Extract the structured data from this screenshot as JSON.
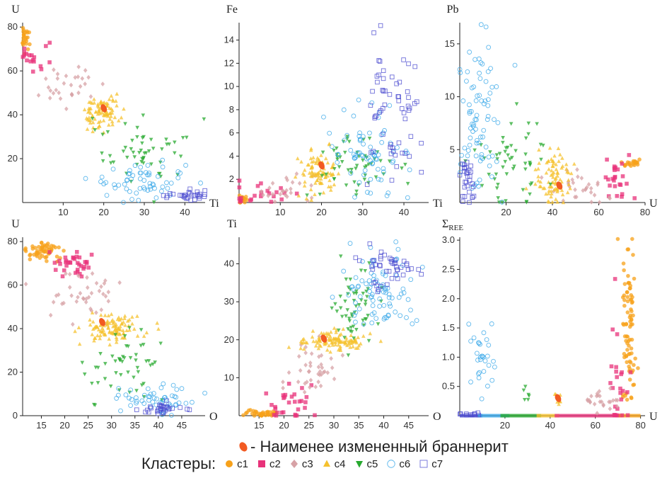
{
  "highlight": {
    "symbol_color": "#f25a22",
    "text": "- Наименее измененный браннерит"
  },
  "legend": {
    "title": "Кластеры:",
    "items": [
      {
        "label": "c1",
        "marker": "circle-filled",
        "color": "#f7a11a"
      },
      {
        "label": "c2",
        "marker": "square-filled",
        "color": "#e8327a"
      },
      {
        "label": "c3",
        "marker": "diamond-filled",
        "color": "#d7a2a6"
      },
      {
        "label": "c4",
        "marker": "triangle-up-filled",
        "color": "#f5c12e"
      },
      {
        "label": "c5",
        "marker": "triangle-down-filled",
        "color": "#27a92f"
      },
      {
        "label": "c6",
        "marker": "circle-open",
        "color": "#38a8e8"
      },
      {
        "label": "c7",
        "marker": "square-open",
        "color": "#4a4ad0"
      }
    ]
  },
  "chart_data": [
    {
      "type": "scatter",
      "ylabel": "U",
      "xlabel": "Ti",
      "xlim": [
        0,
        45
      ],
      "ylim": [
        0,
        82
      ],
      "xticks": [
        10,
        20,
        30,
        40
      ],
      "yticks": [
        20,
        40,
        60,
        80
      ],
      "clusters": [
        {
          "name": "c1",
          "cx": 0.5,
          "cy": 74,
          "sx": 1.0,
          "sy": 4,
          "n": 25
        },
        {
          "name": "c2",
          "cx": 3,
          "cy": 67,
          "sx": 2.5,
          "sy": 4,
          "n": 18
        },
        {
          "name": "c3",
          "cx": 11,
          "cy": 53,
          "sx": 3.5,
          "sy": 5,
          "n": 30
        },
        {
          "name": "c4",
          "cx": 19.5,
          "cy": 41,
          "sx": 2.5,
          "sy": 4,
          "n": 90
        },
        {
          "name": "c5",
          "cx": 30,
          "cy": 24,
          "sx": 5,
          "sy": 7,
          "n": 55
        },
        {
          "name": "c6",
          "cx": 30,
          "cy": 10,
          "sx": 5,
          "sy": 4,
          "n": 60
        },
        {
          "name": "c7",
          "cx": 40,
          "cy": 3,
          "sx": 2.5,
          "sy": 1.2,
          "n": 30
        }
      ],
      "least_altered": {
        "x": 20,
        "y": 43
      }
    },
    {
      "type": "scatter",
      "ylabel": "Fe",
      "xlabel": "Ti",
      "xlim": [
        0,
        46
      ],
      "ylim": [
        0,
        15.5
      ],
      "xticks": [
        10,
        20,
        30,
        40
      ],
      "yticks": [
        2,
        4,
        6,
        8,
        10,
        12,
        14
      ],
      "clusters": [
        {
          "name": "c1",
          "cx": 0.5,
          "cy": 0.3,
          "sx": 0.6,
          "sy": 0.3,
          "n": 15
        },
        {
          "name": "c2",
          "cx": 5,
          "cy": 0.8,
          "sx": 5,
          "sy": 0.6,
          "n": 22
        },
        {
          "name": "c3",
          "cx": 12,
          "cy": 1.3,
          "sx": 4,
          "sy": 0.8,
          "n": 25
        },
        {
          "name": "c4",
          "cx": 19,
          "cy": 2.6,
          "sx": 2.5,
          "sy": 0.8,
          "n": 90
        },
        {
          "name": "c5",
          "cx": 27,
          "cy": 3.2,
          "sx": 5,
          "sy": 1.4,
          "n": 55
        },
        {
          "name": "c6",
          "cx": 31,
          "cy": 4.0,
          "sx": 5,
          "sy": 1.8,
          "n": 75
        },
        {
          "name": "c7",
          "cx": 38,
          "cy": 7.5,
          "sx": 4,
          "sy": 2.8,
          "n": 60
        }
      ],
      "least_altered": {
        "x": 20,
        "y": 3.2
      }
    },
    {
      "type": "scatter",
      "ylabel": "Pb",
      "xlabel": "U",
      "xlim": [
        0,
        80
      ],
      "ylim": [
        0,
        17
      ],
      "xticks": [
        20,
        40,
        60,
        80
      ],
      "yticks": [
        5,
        10,
        15
      ],
      "clusters": [
        {
          "name": "c1",
          "cx": 74,
          "cy": 3.7,
          "sx": 2,
          "sy": 0.2,
          "n": 20
        },
        {
          "name": "c2",
          "cx": 68,
          "cy": 2.4,
          "sx": 4,
          "sy": 1.0,
          "n": 25
        },
        {
          "name": "c3",
          "cx": 52,
          "cy": 1.5,
          "sx": 6,
          "sy": 0.7,
          "n": 30
        },
        {
          "name": "c4",
          "cx": 40,
          "cy": 2.3,
          "sx": 4,
          "sy": 1.2,
          "n": 85
        },
        {
          "name": "c5",
          "cx": 22,
          "cy": 4.0,
          "sx": 8,
          "sy": 2.5,
          "n": 55
        },
        {
          "name": "c6",
          "cx": 8,
          "cy": 8.0,
          "sx": 4.5,
          "sy": 4,
          "n": 80
        },
        {
          "name": "c7",
          "cx": 3,
          "cy": 2.2,
          "sx": 1.5,
          "sy": 1.0,
          "n": 30
        }
      ],
      "least_altered": {
        "x": 43,
        "y": 1.6
      }
    },
    {
      "type": "scatter",
      "ylabel": "U",
      "xlabel": "O",
      "xlim": [
        11,
        50
      ],
      "ylim": [
        0,
        82
      ],
      "xticks": [
        15,
        20,
        25,
        30,
        35,
        40,
        45
      ],
      "yticks": [
        0,
        20,
        40,
        60,
        80
      ],
      "clusters": [
        {
          "name": "c1",
          "cx": 15,
          "cy": 76,
          "sx": 2,
          "sy": 2.5,
          "n": 55
        },
        {
          "name": "c2",
          "cx": 22,
          "cy": 69,
          "sx": 2.5,
          "sy": 2.5,
          "n": 35
        },
        {
          "name": "c3",
          "cx": 25,
          "cy": 55,
          "sx": 4,
          "sy": 6,
          "n": 40
        },
        {
          "name": "c4",
          "cx": 30,
          "cy": 40,
          "sx": 3,
          "sy": 3.5,
          "n": 110
        },
        {
          "name": "c5",
          "cx": 34,
          "cy": 24,
          "sx": 4,
          "sy": 8,
          "n": 50
        },
        {
          "name": "c6",
          "cx": 40,
          "cy": 7,
          "sx": 4,
          "sy": 3.5,
          "n": 55
        },
        {
          "name": "c7",
          "cx": 41,
          "cy": 3,
          "sx": 2.5,
          "sy": 1.5,
          "n": 30
        }
      ],
      "least_altered": {
        "x": 28,
        "y": 43
      }
    },
    {
      "type": "scatter",
      "ylabel": "Ti",
      "xlabel": "O",
      "xlim": [
        11,
        49
      ],
      "ylim": [
        0,
        47
      ],
      "xticks": [
        15,
        20,
        25,
        30,
        35,
        40,
        45
      ],
      "yticks": [
        10,
        20,
        30,
        40
      ],
      "clusters": [
        {
          "name": "c1",
          "cx": 15.5,
          "cy": 0.5,
          "sx": 1.5,
          "sy": 0.4,
          "n": 40
        },
        {
          "name": "c2",
          "cx": 22,
          "cy": 3,
          "sx": 3,
          "sy": 3,
          "n": 30
        },
        {
          "name": "c3",
          "cx": 25,
          "cy": 12,
          "sx": 3,
          "sy": 4,
          "n": 40
        },
        {
          "name": "c4",
          "cx": 30,
          "cy": 19.5,
          "sx": 3,
          "sy": 1.3,
          "n": 110
        },
        {
          "name": "c5",
          "cx": 34.5,
          "cy": 27,
          "sx": 2.5,
          "sy": 6,
          "n": 55
        },
        {
          "name": "c6",
          "cx": 39,
          "cy": 33,
          "sx": 3.5,
          "sy": 4.5,
          "n": 85
        },
        {
          "name": "c7",
          "cx": 41,
          "cy": 39,
          "sx": 2.5,
          "sy": 2.5,
          "n": 45
        }
      ],
      "least_altered": {
        "x": 28,
        "y": 20.3
      }
    },
    {
      "type": "scatter",
      "ylabel": "Σ",
      "ylabel_sub": "REE",
      "xlabel": "U",
      "xlim": [
        0,
        82
      ],
      "ylim": [
        0,
        3.05
      ],
      "xticks": [
        20,
        40,
        60,
        80
      ],
      "yticks": [
        0.5,
        1.0,
        1.5,
        2.0,
        2.5,
        3.0
      ],
      "ytick_labels": [
        "0.5",
        "1.0",
        "1.5",
        "2.0",
        "2.5",
        "3.0"
      ],
      "clusters": [
        {
          "name": "c1",
          "cx": 75,
          "cy": 1.5,
          "sx": 1.5,
          "sy": 0.75,
          "n": 85
        },
        {
          "name": "c2",
          "cx": 70,
          "cy": 0.6,
          "sx": 2.5,
          "sy": 0.7,
          "n": 25
        },
        {
          "name": "c3",
          "cx": 62,
          "cy": 0.25,
          "sx": 6,
          "sy": 0.15,
          "n": 25
        },
        {
          "name": "c4",
          "cx": 44,
          "cy": 0.25,
          "sx": 1,
          "sy": 0.1,
          "n": 10
        },
        {
          "name": "c5",
          "cx": 30,
          "cy": 0.42,
          "sx": 1.5,
          "sy": 0.1,
          "n": 6
        },
        {
          "name": "c6",
          "cx": 10,
          "cy": 0.95,
          "sx": 3,
          "sy": 0.25,
          "n": 30
        },
        {
          "name": "c7",
          "cx": 5,
          "cy": 0.02,
          "sx": 3,
          "sy": 0.01,
          "n": 10
        }
      ],
      "baseline_segments": [
        {
          "name": "c7",
          "from": 0,
          "to": 10
        },
        {
          "name": "c6",
          "from": 8,
          "to": 22
        },
        {
          "name": "c5",
          "from": 18,
          "to": 36
        },
        {
          "name": "c4",
          "from": 34,
          "to": 44
        },
        {
          "name": "c2",
          "from": 42,
          "to": 72
        },
        {
          "name": "c1",
          "from": 70,
          "to": 80
        }
      ],
      "least_altered": {
        "x": 43.5,
        "y": 0.3
      }
    }
  ]
}
